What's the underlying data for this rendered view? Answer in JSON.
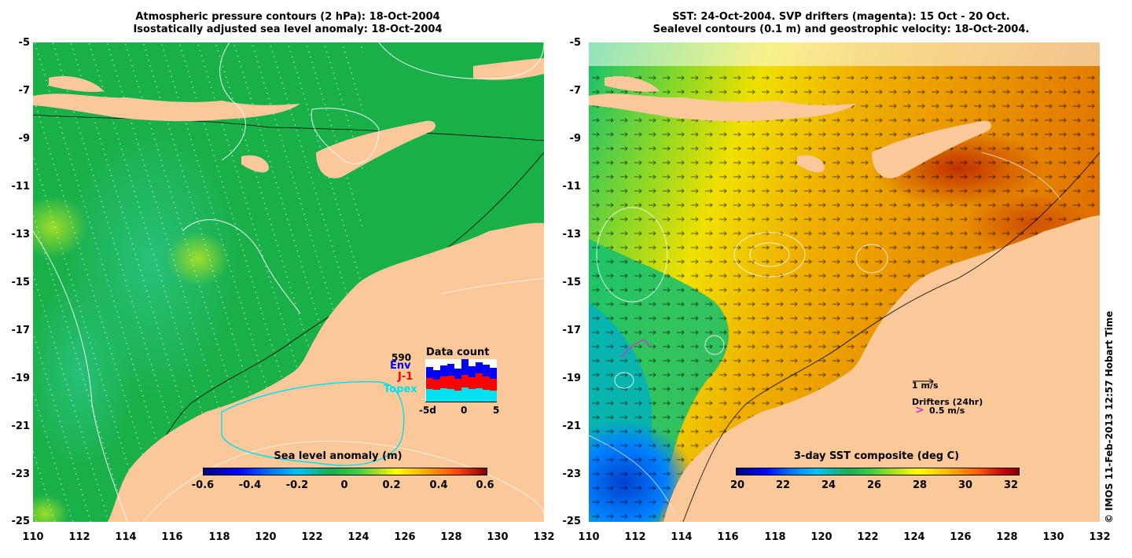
{
  "left_panel": {
    "title_line1": "Atmospheric pressure contours (2 hPa): 18-Oct-2004",
    "title_line2": "Isostatically adjusted sea level anomaly: 18-Oct-2004",
    "colorbar_title": "Sea level anomaly (m)",
    "colorbar_ticks": [
      "-0.6",
      "-0.4",
      "-0.2",
      "0",
      "0.2",
      "0.4",
      "0.6"
    ],
    "data_count": {
      "total": "590",
      "title": "Data count",
      "legend": [
        "Env",
        "J-1",
        "Topex"
      ],
      "axis_ticks": [
        "-5d",
        "0",
        "5"
      ]
    }
  },
  "right_panel": {
    "title_line1": "SST: 24-Oct-2004. SVP drifters (magenta): 15 Oct - 20 Oct.",
    "title_line2": "Sealevel contours (0.1 m) and geostrophic velocity: 18-Oct-2004.",
    "colorbar_title": "3-day SST composite (deg C)",
    "colorbar_ticks": [
      "20",
      "22",
      "24",
      "26",
      "28",
      "30",
      "32"
    ],
    "velocity_scale": "1 m/s",
    "drifters_label": "Drifters (24hr)",
    "drifters_scale": "0.5 m/s",
    "drifter_symbol": ">"
  },
  "y_ticks": [
    "-5",
    "-7",
    "-9",
    "-11",
    "-13",
    "-15",
    "-17",
    "-19",
    "-21",
    "-23",
    "-25"
  ],
  "x_ticks": [
    "110",
    "112",
    "114",
    "116",
    "118",
    "120",
    "122",
    "124",
    "126",
    "128",
    "130",
    "132"
  ],
  "credit": "© IMOS 11-Feb-2013 12:57 Hobart Time",
  "colors": {
    "ocean_green": "#19b04a",
    "land": "#fbc89a",
    "legend_env": "#0000ff",
    "legend_j1": "#ff0000",
    "legend_topex": "#00e0f0",
    "drifter": "#c040c0"
  }
}
